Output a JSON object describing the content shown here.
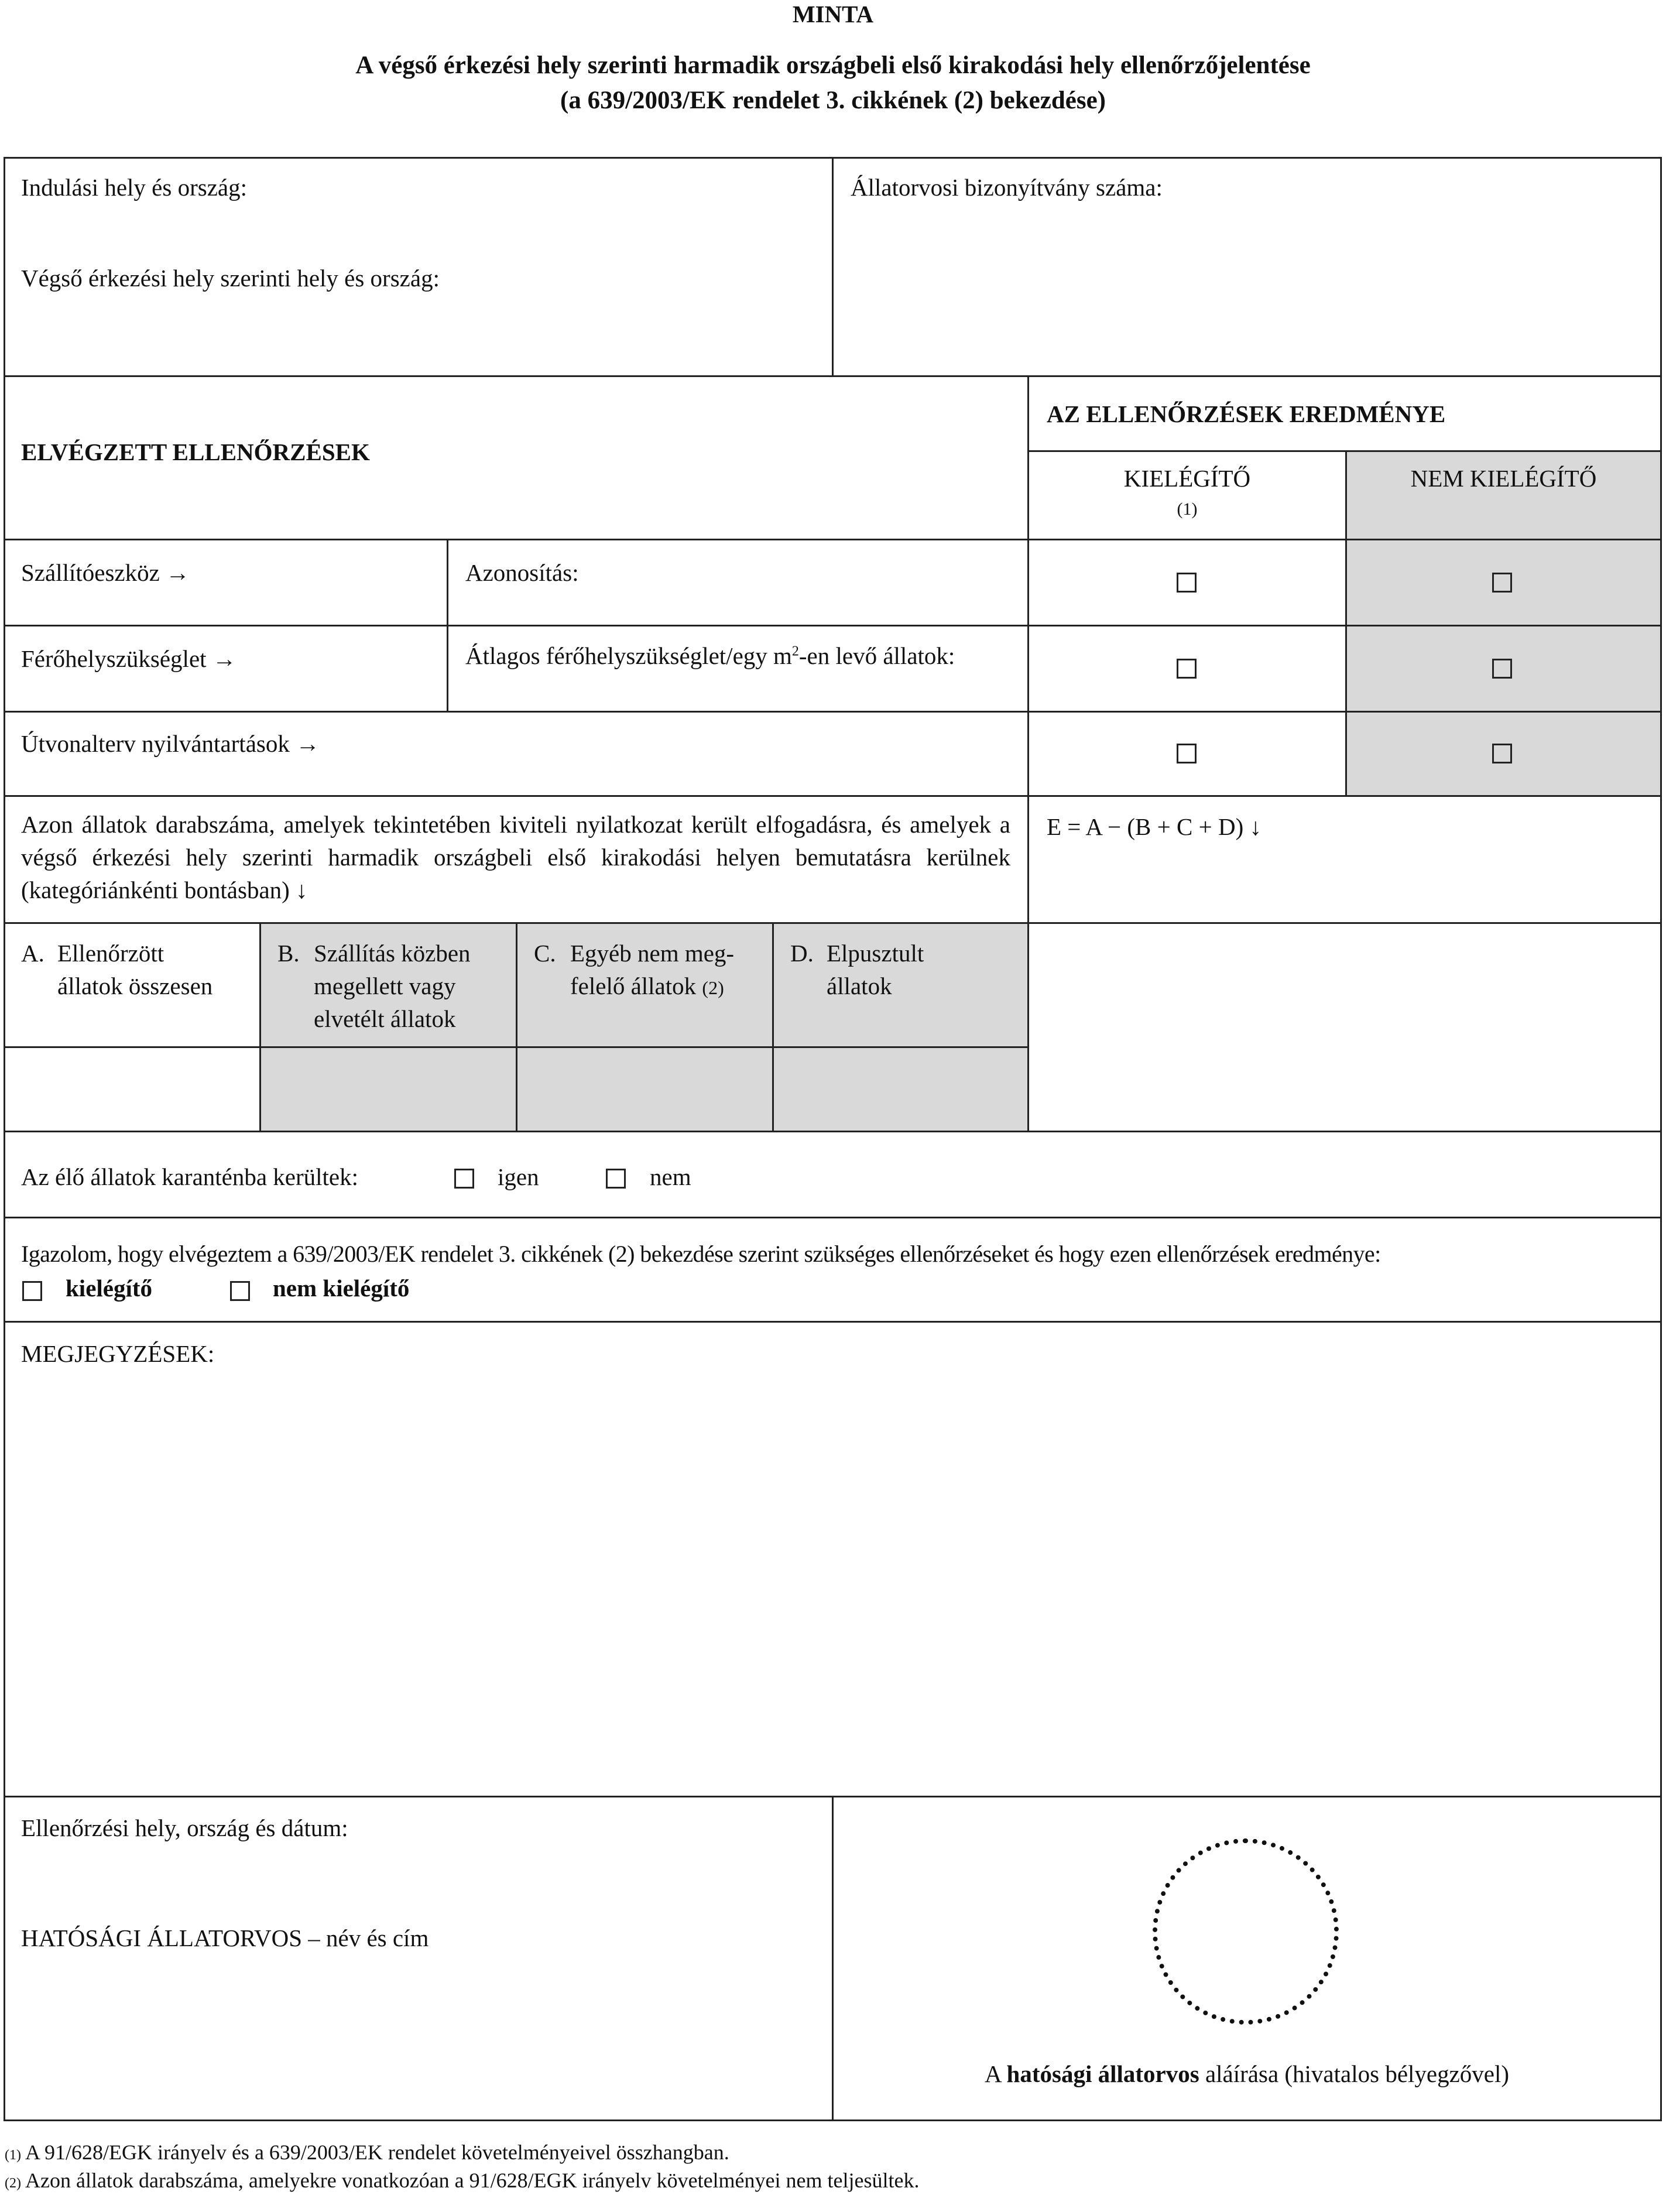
{
  "header": {
    "label": "MINTA",
    "title_line1": "A végső érkezési hely szerinti harmadik országbeli első kirakodási hely ellenőrzőjelentése",
    "title_line2": "(a 639/2003/EK rendelet 3. cikkének (2) bekezdése)"
  },
  "top": {
    "departure": "Indulási hely és ország:",
    "destination": "Végső érkezési hely szerinti hely és ország:",
    "certificate": "Állatorvosi bizonyítvány száma:"
  },
  "checks": {
    "heading": "ELVÉGZETT ELLENŐRZÉSEK",
    "result_heading": "AZ ELLENŐRZÉSEK EREDMÉNYE",
    "satisfactory": "KIELÉGÍTŐ",
    "satisfactory_note": "(1)",
    "unsatisfactory": "NEM KIELÉGÍTŐ",
    "rows": [
      {
        "label": "Szállítóeszköz →",
        "detail": "Azonosítás:"
      },
      {
        "label": "Férőhelyszükséglet →",
        "detail_pre": "Átlagos férőhelyszükséglet/egy m",
        "detail_sup": "2",
        "detail_post": "-en levő állatok:"
      },
      {
        "label": "Útvonalterv nyilvántartások →"
      }
    ]
  },
  "counts": {
    "description": "Azon állatok darabszáma, amelyek tekintetében kiviteli nyilatkozat került elfogadásra, és amelyek a végső érkezési hely szerinti harmadik országbeli első kirakodási helyen bemutatásra kerülnek (kategóriánkénti bontásban) ↓",
    "formula": "E = A − (B + C + D) ↓",
    "categories": [
      {
        "letter": "A.",
        "line1": "Ellenőrzött",
        "line2": "állatok összesen"
      },
      {
        "letter": "B.",
        "line1": "Szállítás közben",
        "line2": "megellett vagy",
        "line3": "elvetélt állatok"
      },
      {
        "letter": "C.",
        "line1": "Egyéb nem meg-",
        "line2": "felelő állatok",
        "note": "(2)"
      },
      {
        "letter": "D.",
        "line1": "Elpusztult",
        "line2": "állatok"
      }
    ]
  },
  "quarantine": {
    "label": "Az élő állatok karanténba kerültek:",
    "yes": "igen",
    "no": "nem"
  },
  "certify": {
    "text": "Igazolom, hogy elvégeztem a 639/2003/EK rendelet 3. cikkének (2) bekezdése szerint szükséges ellenőrzéseket és hogy ezen ellenőrzések eredménye:",
    "satisfactory": "kielégítő",
    "unsatisfactory": "nem kielégítő"
  },
  "remarks": {
    "label": "MEGJEGYZÉSEK:"
  },
  "signature": {
    "place_date": "Ellenőrzési hely, ország és dátum:",
    "vet": "HATÓSÁGI ÁLLATORVOS – név és cím",
    "sign_pre": "A ",
    "sign_bold": "hatósági állatorvos",
    "sign_post": " aláírása (hivatalos bélyegzővel)"
  },
  "footnotes": [
    {
      "mark": "(1)",
      "text": " A 91/628/EGK irányelv és a 639/2003/EK rendelet követelményeivel összhangban."
    },
    {
      "mark": "(2)",
      "text": " Azon állatok darabszáma, amelyekre vonatkozóan a 91/628/EGK irányelv követelményei nem teljesültek."
    }
  ]
}
